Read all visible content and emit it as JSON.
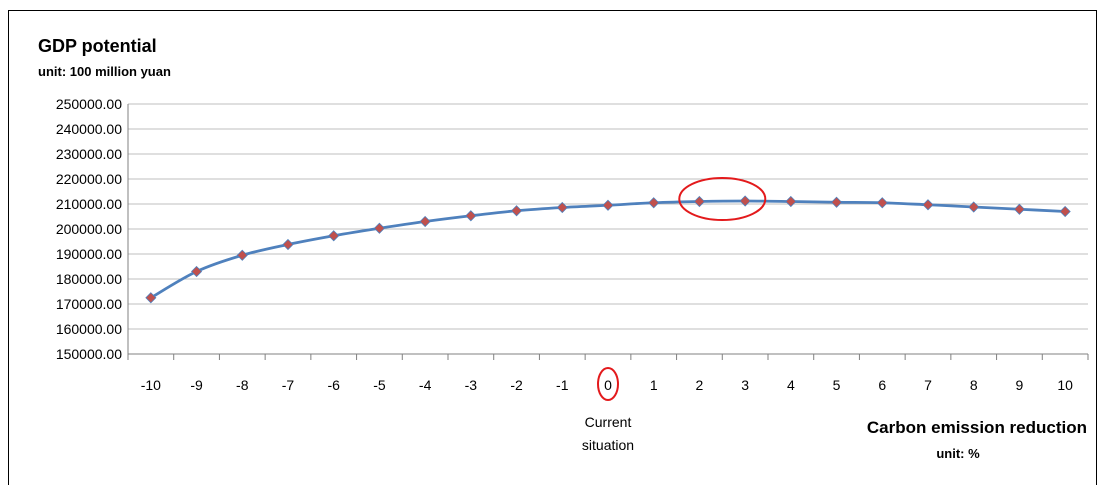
{
  "chart_data": {
    "type": "line",
    "title": "GDP potential",
    "y_unit": "unit: 100 million yuan",
    "xlabel": "Carbon emission reduction",
    "x_unit": "unit: %",
    "x": [
      -10,
      -9,
      -8,
      -7,
      -6,
      -5,
      -4,
      -3,
      -2,
      -1,
      0,
      1,
      2,
      3,
      4,
      5,
      6,
      7,
      8,
      9,
      10
    ],
    "x_tick_labels": [
      "-10",
      "-9",
      "-8",
      "-7",
      "-6",
      "-5",
      "-4",
      "-3",
      "-2",
      "-1",
      "0",
      "1",
      "2",
      "3",
      "4",
      "5",
      "6",
      "7",
      "8",
      "9",
      "10"
    ],
    "series": [
      {
        "values": [
          172500,
          183000,
          189500,
          193800,
          197300,
          200300,
          203000,
          205300,
          207300,
          208600,
          209500,
          210500,
          211000,
          211200,
          211000,
          210700,
          210500,
          209700,
          208800,
          207900,
          207000
        ]
      }
    ],
    "ylim": [
      150000,
      250000
    ],
    "y_ticks": [
      150000,
      160000,
      170000,
      180000,
      190000,
      200000,
      210000,
      220000,
      230000,
      240000,
      250000
    ],
    "y_tick_labels": [
      "150000.00",
      "160000.00",
      "170000.00",
      "180000.00",
      "190000.00",
      "200000.00",
      "210000.00",
      "220000.00",
      "230000.00",
      "240000.00",
      "250000.00"
    ],
    "grid": true,
    "annotations": [
      {
        "text": "Current situation",
        "lines": [
          "Current",
          "situation"
        ],
        "x": 0
      }
    ],
    "highlights": [
      {
        "shape": "ellipse",
        "around_x": 0,
        "target": "tick_label"
      },
      {
        "shape": "ellipse",
        "around_x": [
          2,
          3
        ],
        "target": "peak"
      }
    ],
    "colors": {
      "line": "#4f81bd",
      "marker": "#c0504d",
      "highlight": "#e31a1c",
      "grid": "#bfbfbf",
      "axis": "#808080"
    }
  }
}
